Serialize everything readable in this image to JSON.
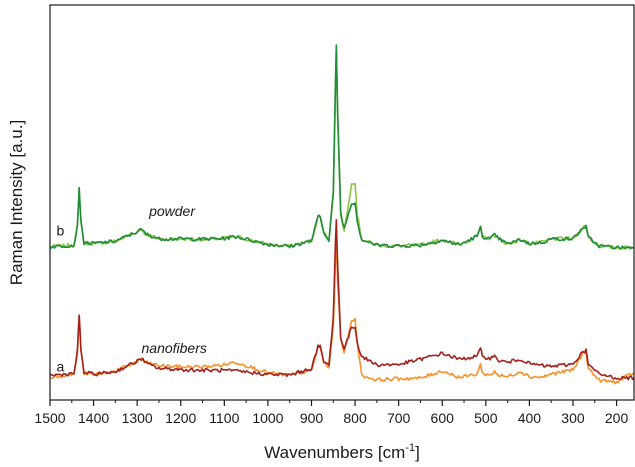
{
  "chart_data": {
    "type": "line",
    "xlabel": "Wavenumbers [cm",
    "xlabel_sup": "-1",
    "xlabel_end": "]",
    "ylabel": "Raman Intensity [a.u.]",
    "xlim": [
      1500,
      160
    ],
    "ylim": [
      0,
      100
    ],
    "x_reversed": true,
    "xticks": [
      1500,
      1400,
      1300,
      1200,
      1100,
      1000,
      900,
      800,
      700,
      600,
      500,
      400,
      300,
      200
    ],
    "y_tick_labels": false,
    "grid": false,
    "annotations": [
      {
        "text": "b",
        "x": 1485,
        "y": 41.6,
        "style": "normal"
      },
      {
        "text": "powder",
        "x": 1220,
        "y": 46.6,
        "style": "italic"
      },
      {
        "text": "a",
        "x": 1485,
        "y": 7.2,
        "style": "normal"
      },
      {
        "text": "nanofibers",
        "x": 1215,
        "y": 11.9,
        "style": "italic"
      }
    ],
    "series": [
      {
        "group": "b",
        "color": "#8cc63f",
        "x": [
          1500,
          1445,
          1437,
          1433,
          1429,
          1422,
          1400,
          1350,
          1300,
          1290,
          1280,
          1250,
          1200,
          1150,
          1100,
          1080,
          1070,
          1000,
          950,
          900,
          885,
          880,
          872,
          860,
          850,
          845,
          843,
          840,
          833,
          825,
          815,
          808,
          800,
          795,
          785,
          750,
          700,
          650,
          600,
          560,
          520,
          512,
          508,
          490,
          480,
          470,
          450,
          420,
          400,
          370,
          350,
          300,
          275,
          270,
          265,
          240,
          200,
          160
        ],
        "y": [
          38.8,
          39.2,
          44,
          53.4,
          45,
          39.8,
          39.6,
          40.2,
          42.6,
          43.2,
          42,
          40.8,
          40.8,
          40.7,
          40.9,
          41.3,
          41.3,
          39.4,
          38.9,
          40.3,
          46.4,
          46.4,
          42.5,
          40.6,
          52,
          78,
          88.9,
          72,
          47,
          43.1,
          49.4,
          55.1,
          55.1,
          47,
          40.7,
          39.2,
          39,
          39.2,
          40.6,
          39.3,
          41.5,
          43.6,
          41.4,
          40.8,
          41.8,
          40.8,
          39.5,
          40.6,
          39.6,
          39.9,
          40.8,
          40.8,
          43.9,
          43.9,
          41.2,
          39,
          38.6,
          38.6
        ]
      },
      {
        "group": "b",
        "color": "#1e8c3a",
        "x": [
          1500,
          1445,
          1437,
          1433,
          1429,
          1422,
          1400,
          1350,
          1300,
          1290,
          1280,
          1250,
          1200,
          1150,
          1100,
          1080,
          1070,
          1000,
          950,
          900,
          885,
          880,
          872,
          860,
          850,
          845,
          843,
          840,
          833,
          825,
          815,
          808,
          800,
          795,
          785,
          750,
          700,
          650,
          600,
          560,
          520,
          512,
          508,
          490,
          480,
          470,
          450,
          420,
          400,
          370,
          350,
          300,
          275,
          270,
          265,
          240,
          200,
          160
        ],
        "y": [
          38.8,
          39.2,
          44.2,
          53.9,
          45,
          39.8,
          39.6,
          40.2,
          42.6,
          43.2,
          42,
          40.8,
          40.8,
          40.7,
          40.9,
          41.3,
          41.3,
          39.4,
          38.9,
          40.3,
          46.4,
          46.4,
          42.5,
          40.6,
          52.5,
          80,
          89.6,
          73,
          47.5,
          43.4,
          47.2,
          49.9,
          50,
          45.3,
          40.7,
          39.2,
          39,
          39.2,
          40.4,
          39.3,
          41.5,
          43.6,
          41.4,
          40.8,
          41.8,
          40.8,
          39.5,
          40.6,
          39.6,
          39.9,
          40.8,
          40.8,
          43.8,
          43.8,
          41.2,
          39,
          38.6,
          38.6
        ]
      },
      {
        "group": "a",
        "color": "#f7922b",
        "x": [
          1500,
          1445,
          1437,
          1433,
          1429,
          1422,
          1400,
          1350,
          1300,
          1290,
          1280,
          1250,
          1200,
          1150,
          1100,
          1080,
          1070,
          1000,
          950,
          900,
          885,
          880,
          872,
          860,
          850,
          845,
          843,
          840,
          833,
          825,
          815,
          808,
          800,
          795,
          785,
          750,
          700,
          650,
          600,
          560,
          520,
          512,
          508,
          490,
          480,
          470,
          450,
          420,
          400,
          370,
          350,
          300,
          275,
          270,
          265,
          240,
          200,
          160
        ],
        "y": [
          5.8,
          6.6,
          11.7,
          21.2,
          12.5,
          6.8,
          6.5,
          7.3,
          9.7,
          10.6,
          9.5,
          8.7,
          8.4,
          8.4,
          8.9,
          9.5,
          9.5,
          6.9,
          6.3,
          7.5,
          13.3,
          13.3,
          9.6,
          8,
          18.5,
          35,
          41.2,
          30,
          16,
          12,
          16.3,
          20.3,
          20.3,
          14.8,
          6.2,
          5.1,
          5.4,
          5.5,
          7.4,
          5.7,
          6.6,
          9,
          6.8,
          6.2,
          7.3,
          6.2,
          5.9,
          7.3,
          5.9,
          5.8,
          6.6,
          7.6,
          12.1,
          12.1,
          8,
          5,
          4.5,
          7
        ]
      },
      {
        "group": "a",
        "color": "#a3201c",
        "x": [
          1500,
          1445,
          1437,
          1433,
          1429,
          1422,
          1400,
          1350,
          1300,
          1290,
          1280,
          1250,
          1200,
          1150,
          1100,
          1080,
          1070,
          1000,
          950,
          900,
          885,
          880,
          872,
          860,
          850,
          845,
          843,
          840,
          833,
          825,
          815,
          808,
          800,
          795,
          785,
          750,
          700,
          650,
          600,
          560,
          520,
          512,
          508,
          490,
          480,
          470,
          450,
          420,
          400,
          370,
          350,
          300,
          275,
          270,
          265,
          240,
          200,
          160
        ],
        "y": [
          6.2,
          6.7,
          12.5,
          21.7,
          12.5,
          7,
          6.5,
          7.2,
          9.8,
          10.5,
          9.3,
          8,
          7.7,
          7.5,
          7.5,
          7.3,
          7.3,
          6.5,
          6.3,
          8,
          13.5,
          13.5,
          9.8,
          8.7,
          21,
          40,
          45.5,
          34,
          16,
          13,
          16,
          18.5,
          18.5,
          14.6,
          11,
          8.9,
          9,
          10.3,
          11.8,
          10.3,
          11.1,
          12.9,
          11,
          10.6,
          11,
          10,
          9.5,
          10.4,
          9.2,
          8.7,
          8.5,
          9.1,
          12.5,
          12.5,
          9,
          6.5,
          5.6,
          5.6
        ]
      }
    ]
  }
}
